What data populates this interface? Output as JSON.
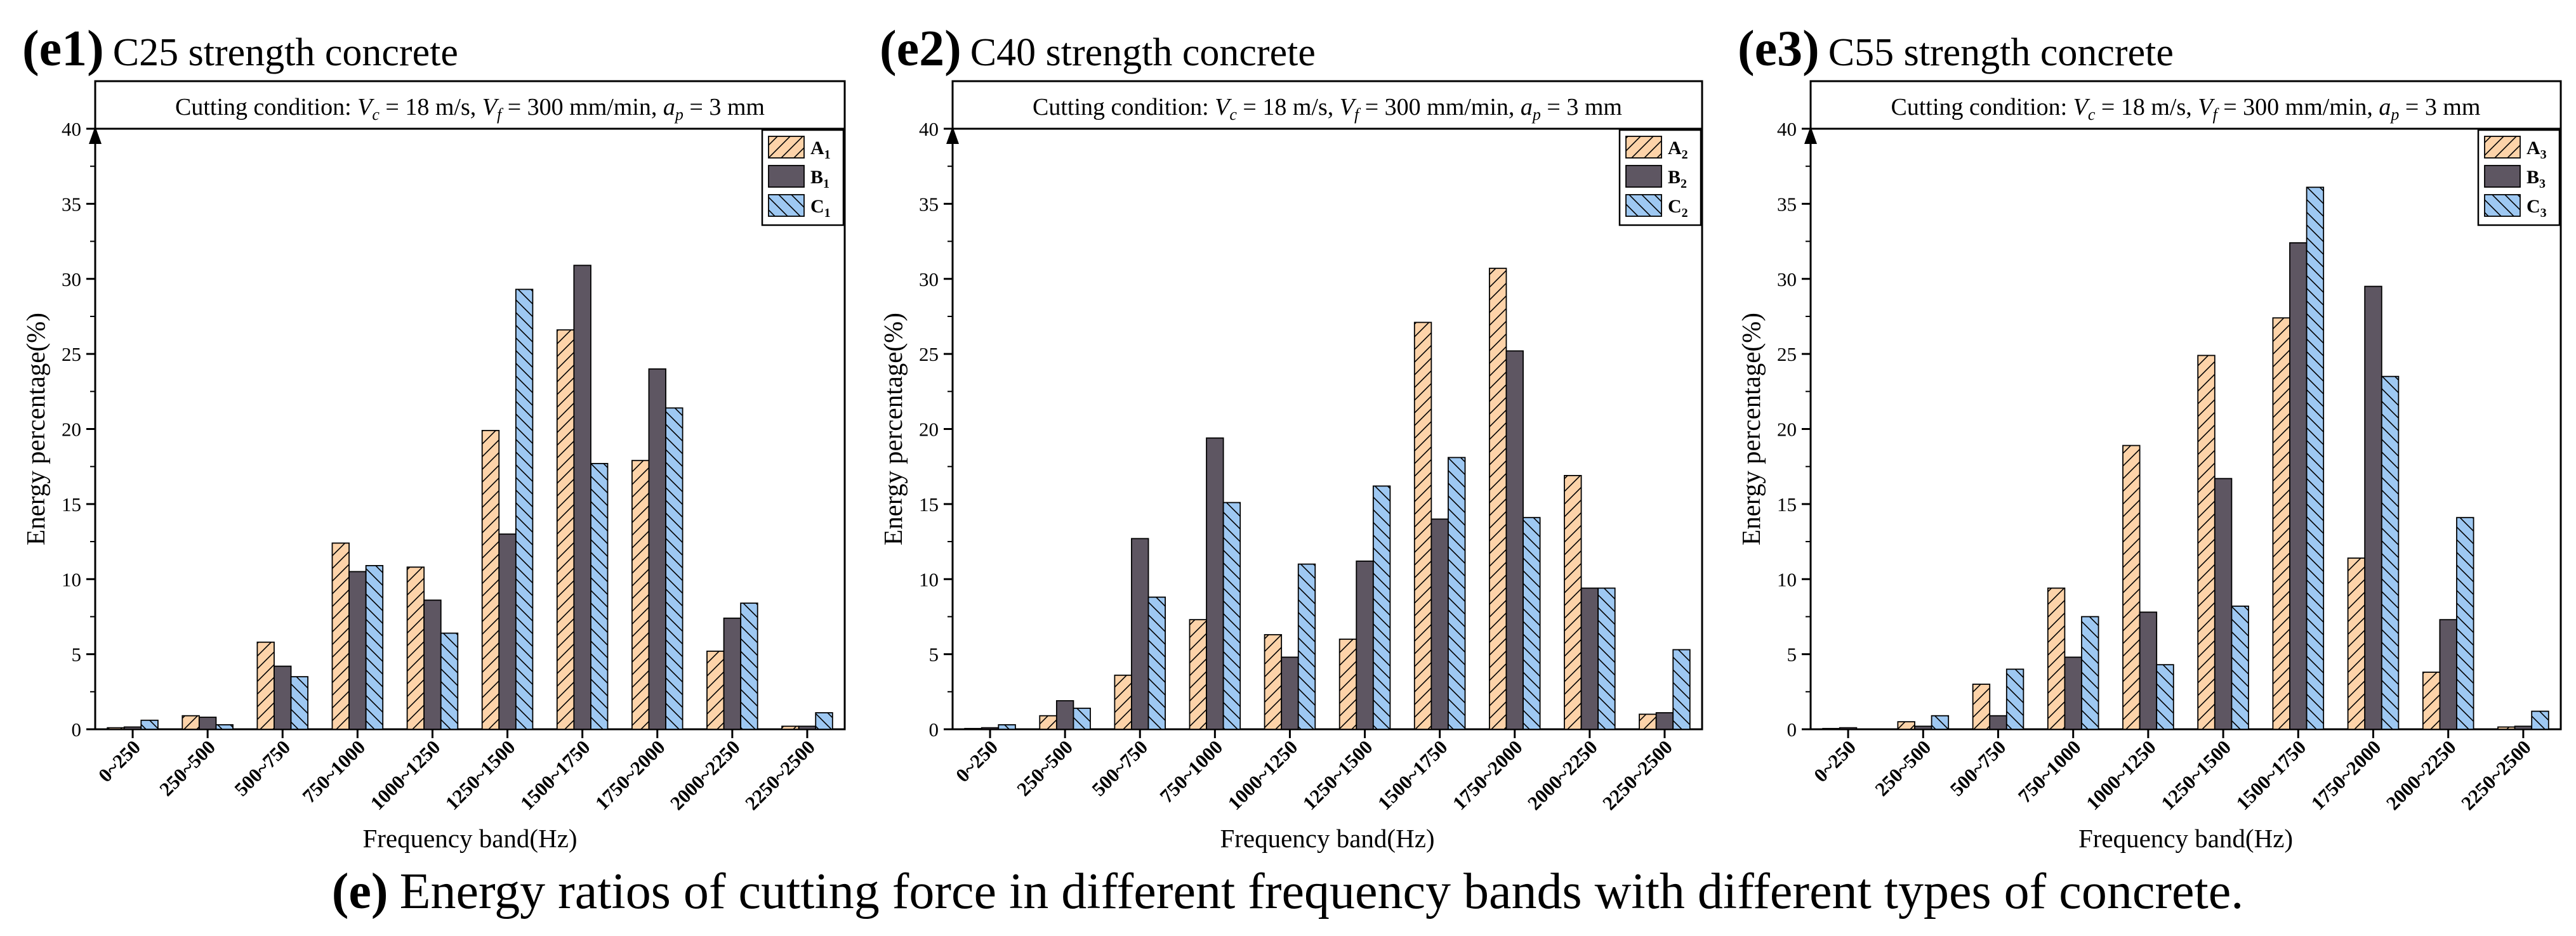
{
  "figure": {
    "caption": {
      "letter": "(e)",
      "text": "Energy ratios of cutting force in different frequency bands with different types of concrete."
    }
  },
  "colors": {
    "A": "#fdd3a9",
    "B": "#5e5662",
    "C": "#9ec8f2",
    "axis": "#000000"
  },
  "chart_data": [
    {
      "type": "bar",
      "panel": "(e1)",
      "title": "C25 strength concrete",
      "condition": {
        "prefix": "Cutting condition: ",
        "vc_sym": "V",
        "vc_sub": "c",
        "vc_val": " = 18 m/s, ",
        "vf_sym": "V",
        "vf_sub": "f",
        "vf_val": " = 300 mm/min, ",
        "ap_sym": "a",
        "ap_sub": "p",
        "ap_val": " = 3 mm"
      },
      "xlabel": "Frequency band(Hz)",
      "ylabel": "Energy percentage(%)",
      "ylim": [
        0,
        40
      ],
      "yticks": [
        "0",
        "5",
        "10",
        "15",
        "20",
        "25",
        "30",
        "35",
        "40"
      ],
      "legend_position": "top-right",
      "categories": [
        "0~250",
        "250~500",
        "500~750",
        "750~1000",
        "1000~1250",
        "1250~1500",
        "1500~1750",
        "1750~2000",
        "2000~2250",
        "2250~2500"
      ],
      "series": [
        {
          "name": "A",
          "sub": "1",
          "color": "#fdd3a9",
          "values": [
            0.1,
            0.9,
            5.8,
            12.4,
            10.8,
            19.9,
            26.6,
            17.9,
            5.2,
            0.2
          ]
        },
        {
          "name": "B",
          "sub": "1",
          "color": "#5e5662",
          "values": [
            0.15,
            0.8,
            4.2,
            10.5,
            8.6,
            13.0,
            30.9,
            24.0,
            7.4,
            0.2
          ]
        },
        {
          "name": "C",
          "sub": "1",
          "color": "#9ec8f2",
          "values": [
            0.6,
            0.3,
            3.5,
            10.9,
            6.4,
            29.3,
            17.7,
            21.4,
            8.4,
            1.1
          ]
        }
      ]
    },
    {
      "type": "bar",
      "panel": "(e2)",
      "title": "C40 strength concrete",
      "condition": {
        "prefix": "Cutting condition: ",
        "vc_sym": "V",
        "vc_sub": "c",
        "vc_val": " = 18 m/s, ",
        "vf_sym": "V",
        "vf_sub": "f",
        "vf_val": " = 300 mm/min, ",
        "ap_sym": "a",
        "ap_sub": "p",
        "ap_val": " = 3 mm"
      },
      "xlabel": "Frequency band(Hz)",
      "ylabel": "Energy percentage(%)",
      "ylim": [
        0,
        40
      ],
      "yticks": [
        "0",
        "5",
        "10",
        "15",
        "20",
        "25",
        "30",
        "35",
        "40"
      ],
      "legend_position": "top-right",
      "categories": [
        "0~250",
        "250~500",
        "500~750",
        "750~1000",
        "1000~1250",
        "1250~1500",
        "1500~1750",
        "1750~2000",
        "2000~2250",
        "2250~2500"
      ],
      "series": [
        {
          "name": "A",
          "sub": "2",
          "color": "#fdd3a9",
          "values": [
            0.05,
            0.9,
            3.6,
            7.3,
            6.3,
            6.0,
            27.1,
            30.7,
            16.9,
            1.0
          ]
        },
        {
          "name": "B",
          "sub": "2",
          "color": "#5e5662",
          "values": [
            0.1,
            1.9,
            12.7,
            19.4,
            4.8,
            11.2,
            14.0,
            25.2,
            9.4,
            1.1
          ]
        },
        {
          "name": "C",
          "sub": "2",
          "color": "#9ec8f2",
          "values": [
            0.3,
            1.4,
            8.8,
            15.1,
            11.0,
            16.2,
            18.1,
            14.1,
            9.4,
            5.3
          ]
        }
      ]
    },
    {
      "type": "bar",
      "panel": "(e3)",
      "title": "C55 strength concrete",
      "condition": {
        "prefix": "Cutting condition: ",
        "vc_sym": "V",
        "vc_sub": "c",
        "vc_val": " = 18 m/s, ",
        "vf_sym": "V",
        "vf_sub": "f",
        "vf_val": " = 300 mm/min, ",
        "ap_sym": "a",
        "ap_sub": "p",
        "ap_val": " = 3 mm"
      },
      "xlabel": "Frequency band(Hz)",
      "ylabel": "Energy percentage(%)",
      "ylim": [
        0,
        40
      ],
      "yticks": [
        "0",
        "5",
        "10",
        "15",
        "20",
        "25",
        "30",
        "35",
        "40"
      ],
      "legend_position": "top-right",
      "categories": [
        "0~250",
        "250~500",
        "500~750",
        "750~1000",
        "1000~1250",
        "1250~1500",
        "1500~1750",
        "1750~2000",
        "2000~2250",
        "2250~2500"
      ],
      "series": [
        {
          "name": "A",
          "sub": "3",
          "color": "#fdd3a9",
          "values": [
            0.05,
            0.5,
            3.0,
            9.4,
            18.9,
            24.9,
            27.4,
            11.4,
            3.8,
            0.15
          ]
        },
        {
          "name": "B",
          "sub": "3",
          "color": "#5e5662",
          "values": [
            0.1,
            0.2,
            0.9,
            4.8,
            7.8,
            16.7,
            32.4,
            29.5,
            7.3,
            0.2
          ]
        },
        {
          "name": "C",
          "sub": "3",
          "color": "#9ec8f2",
          "values": [
            0.0,
            0.9,
            4.0,
            7.5,
            4.3,
            8.2,
            36.1,
            23.5,
            14.1,
            1.2
          ]
        }
      ]
    }
  ]
}
